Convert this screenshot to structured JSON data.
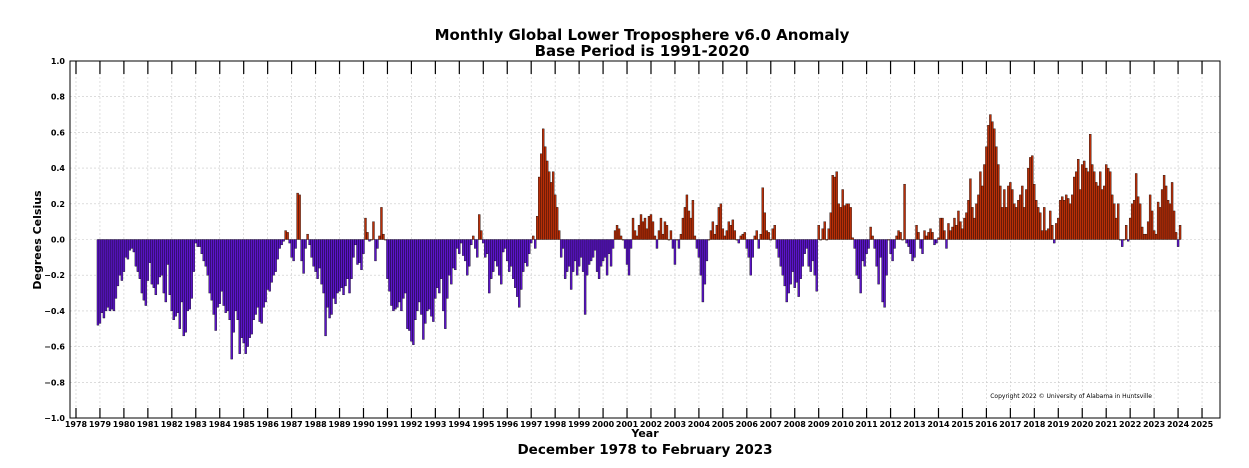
{
  "chart_data": {
    "type": "bar",
    "title": "Monthly Global Lower Troposphere v6.0 Anomaly",
    "subtitle": "Base Period is 1991-2020",
    "xlabel": "Year",
    "ylabel": "Degrees Celsius",
    "period_label": "December 1978 to February 2023",
    "copyright": "Copyright 2022 © University of Alabama in Huntsville",
    "x_ticks": [
      "1978",
      "1979",
      "1980",
      "1981",
      "1982",
      "1983",
      "1984",
      "1985",
      "1986",
      "1987",
      "1988",
      "1989",
      "1990",
      "1991",
      "1992",
      "1993",
      "1994",
      "1995",
      "1996",
      "1997",
      "1998",
      "1999",
      "2000",
      "2001",
      "2002",
      "2003",
      "2004",
      "2005",
      "2006",
      "2007",
      "2008",
      "2009",
      "2010",
      "2011",
      "2012",
      "2013",
      "2014",
      "2015",
      "2016",
      "2017",
      "2018",
      "2019",
      "2020",
      "2021",
      "2022",
      "2023",
      "2024",
      "2025"
    ],
    "y_ticks": [
      "1.0",
      "0.8",
      "0.6",
      "0.4",
      "0.2",
      "0.0",
      "−0.2",
      "−0.4",
      "−0.6",
      "−0.8",
      "−1.0"
    ],
    "xlim": [
      1977.75,
      2025.75
    ],
    "ylim": [
      -1.0,
      1.0
    ],
    "grid": true,
    "colors": {
      "negative_start": "#5b14c8",
      "negative_end": "#5b14c8",
      "positive_start": "#b82e08",
      "positive_end": "#c73a0c",
      "bar_edge": "#000000",
      "grid": "#c8c8c8"
    },
    "series": [
      {
        "start": "1978-12",
        "end": "2023-02",
        "note_values": "monthly anomaly values, one per month, °C",
        "values": [
          -0.48,
          -0.47,
          -0.41,
          -0.44,
          -0.4,
          -0.38,
          -0.4,
          -0.39,
          -0.4,
          -0.33,
          -0.26,
          -0.2,
          -0.23,
          -0.18,
          -0.1,
          -0.11,
          -0.06,
          -0.05,
          -0.07,
          -0.15,
          -0.18,
          -0.22,
          -0.3,
          -0.34,
          -0.37,
          -0.23,
          -0.13,
          -0.25,
          -0.27,
          -0.31,
          -0.25,
          -0.21,
          -0.2,
          -0.3,
          -0.35,
          -0.14,
          -0.31,
          -0.4,
          -0.45,
          -0.43,
          -0.41,
          -0.5,
          -0.35,
          -0.54,
          -0.52,
          -0.4,
          -0.39,
          -0.33,
          -0.18,
          -0.02,
          -0.04,
          -0.04,
          -0.08,
          -0.12,
          -0.15,
          -0.2,
          -0.3,
          -0.34,
          -0.42,
          -0.51,
          -0.38,
          -0.36,
          -0.29,
          -0.37,
          -0.41,
          -0.4,
          -0.45,
          -0.67,
          -0.52,
          -0.4,
          -0.45,
          -0.64,
          -0.55,
          -0.58,
          -0.64,
          -0.6,
          -0.55,
          -0.53,
          -0.45,
          -0.42,
          -0.38,
          -0.46,
          -0.47,
          -0.38,
          -0.35,
          -0.28,
          -0.29,
          -0.24,
          -0.2,
          -0.18,
          -0.11,
          -0.05,
          -0.03,
          -0.01,
          0.05,
          0.04,
          -0.02,
          -0.1,
          -0.12,
          -0.05,
          0.26,
          0.25,
          -0.12,
          -0.19,
          -0.05,
          0.03,
          -0.03,
          -0.1,
          -0.15,
          -0.18,
          -0.22,
          -0.16,
          -0.25,
          -0.3,
          -0.54,
          -0.38,
          -0.44,
          -0.42,
          -0.33,
          -0.36,
          -0.3,
          -0.29,
          -0.27,
          -0.31,
          -0.26,
          -0.22,
          -0.3,
          -0.22,
          -0.1,
          -0.03,
          -0.14,
          -0.13,
          -0.17,
          -0.08,
          0.12,
          0.04,
          -0.01,
          0.0,
          0.1,
          -0.12,
          -0.05,
          0.02,
          0.18,
          0.03,
          0.0,
          -0.22,
          -0.29,
          -0.37,
          -0.4,
          -0.39,
          -0.38,
          -0.35,
          -0.4,
          -0.33,
          -0.3,
          -0.5,
          -0.51,
          -0.57,
          -0.59,
          -0.45,
          -0.4,
          -0.35,
          -0.42,
          -0.56,
          -0.47,
          -0.4,
          -0.39,
          -0.43,
          -0.46,
          -0.33,
          -0.27,
          -0.3,
          -0.22,
          -0.4,
          -0.5,
          -0.33,
          -0.2,
          -0.25,
          -0.16,
          -0.17,
          -0.05,
          -0.08,
          -0.02,
          -0.09,
          -0.12,
          -0.2,
          -0.15,
          -0.03,
          0.02,
          -0.05,
          -0.1,
          0.14,
          0.05,
          -0.02,
          -0.1,
          -0.08,
          -0.3,
          -0.22,
          -0.18,
          -0.12,
          -0.15,
          -0.2,
          -0.25,
          -0.07,
          -0.05,
          -0.12,
          -0.18,
          -0.15,
          -0.22,
          -0.27,
          -0.32,
          -0.38,
          -0.28,
          -0.18,
          -0.13,
          -0.15,
          -0.08,
          -0.02,
          0.02,
          -0.05,
          0.13,
          0.35,
          0.48,
          0.62,
          0.52,
          0.44,
          0.38,
          0.32,
          0.38,
          0.25,
          0.18,
          0.05,
          -0.1,
          -0.05,
          -0.22,
          -0.18,
          -0.15,
          -0.28,
          -0.18,
          -0.12,
          -0.2,
          -0.15,
          -0.1,
          -0.18,
          -0.42,
          -0.2,
          -0.14,
          -0.12,
          -0.1,
          -0.06,
          -0.18,
          -0.22,
          -0.15,
          -0.12,
          -0.1,
          -0.2,
          -0.08,
          -0.15,
          -0.05,
          0.05,
          0.08,
          0.06,
          0.02,
          0.0,
          -0.05,
          -0.14,
          -0.2,
          -0.05,
          0.12,
          0.05,
          0.02,
          0.08,
          0.14,
          0.1,
          0.12,
          0.06,
          0.13,
          0.14,
          0.1,
          0.02,
          -0.05,
          0.05,
          0.12,
          0.03,
          0.1,
          0.08,
          0.0,
          0.05,
          -0.05,
          -0.14,
          0.0,
          -0.05,
          0.03,
          0.12,
          0.18,
          0.25,
          0.16,
          0.12,
          0.22,
          0.02,
          -0.05,
          -0.1,
          -0.2,
          -0.35,
          -0.25,
          -0.12,
          0.0,
          0.05,
          0.1,
          0.03,
          0.08,
          0.18,
          0.2,
          0.06,
          0.02,
          0.05,
          0.1,
          0.08,
          0.11,
          0.05,
          0.0,
          -0.02,
          0.02,
          0.03,
          0.04,
          -0.05,
          -0.1,
          -0.2,
          -0.1,
          0.02,
          0.05,
          -0.05,
          0.03,
          0.29,
          0.15,
          0.05,
          0.04,
          0.0,
          0.06,
          0.08,
          -0.05,
          -0.1,
          -0.15,
          -0.2,
          -0.26,
          -0.35,
          -0.3,
          -0.25,
          -0.18,
          -0.27,
          -0.24,
          -0.32,
          -0.22,
          -0.15,
          -0.08,
          -0.05,
          -0.15,
          -0.18,
          -0.12,
          -0.2,
          -0.29,
          0.08,
          0.0,
          0.06,
          0.1,
          0.0,
          0.06,
          0.15,
          0.36,
          0.35,
          0.38,
          0.2,
          0.18,
          0.28,
          0.19,
          0.2,
          0.2,
          0.18,
          0.01,
          -0.05,
          -0.2,
          -0.22,
          -0.3,
          -0.12,
          -0.15,
          -0.08,
          -0.05,
          0.07,
          0.02,
          -0.05,
          -0.15,
          -0.25,
          -0.1,
          -0.35,
          -0.38,
          -0.2,
          0.0,
          -0.08,
          -0.12,
          -0.05,
          0.02,
          0.05,
          0.04,
          0.0,
          0.31,
          -0.02,
          -0.04,
          -0.08,
          -0.12,
          -0.1,
          0.08,
          0.04,
          -0.05,
          -0.08,
          0.05,
          0.02,
          0.04,
          0.06,
          0.04,
          -0.03,
          -0.02,
          0.01,
          0.12,
          0.12,
          0.05,
          -0.05,
          0.09,
          0.05,
          0.07,
          0.12,
          0.08,
          0.16,
          0.1,
          0.06,
          0.12,
          0.15,
          0.22,
          0.34,
          0.18,
          0.12,
          0.2,
          0.25,
          0.38,
          0.3,
          0.42,
          0.52,
          0.64,
          0.7,
          0.66,
          0.62,
          0.52,
          0.42,
          0.3,
          0.18,
          0.28,
          0.18,
          0.3,
          0.32,
          0.28,
          0.2,
          0.18,
          0.22,
          0.25,
          0.3,
          0.18,
          0.28,
          0.4,
          0.46,
          0.47,
          0.31,
          0.22,
          0.18,
          0.15,
          0.05,
          0.18,
          0.05,
          0.06,
          0.16,
          0.08,
          -0.02,
          0.09,
          0.12,
          0.22,
          0.24,
          0.22,
          0.25,
          0.23,
          0.2,
          0.25,
          0.35,
          0.38,
          0.45,
          0.28,
          0.42,
          0.44,
          0.4,
          0.38,
          0.59,
          0.42,
          0.38,
          0.32,
          0.3,
          0.38,
          0.28,
          0.3,
          0.42,
          0.4,
          0.38,
          0.25,
          0.2,
          0.12,
          0.2,
          0.0,
          -0.04,
          0.0,
          0.08,
          -0.01,
          0.12,
          0.2,
          0.22,
          0.37,
          0.24,
          0.2,
          0.07,
          0.03,
          0.03,
          0.1,
          0.25,
          0.16,
          0.05,
          0.03,
          0.21,
          0.18,
          0.28,
          0.36,
          0.3,
          0.22,
          0.2,
          0.32,
          0.16,
          0.04,
          -0.04,
          0.08
        ]
      }
    ]
  }
}
